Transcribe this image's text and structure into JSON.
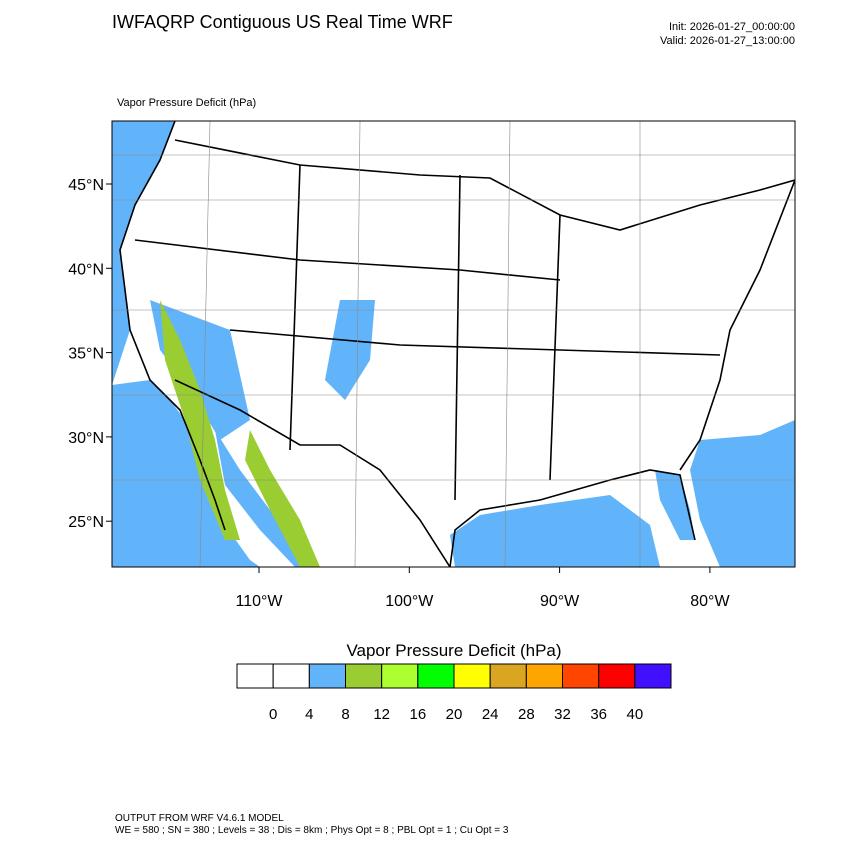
{
  "header": {
    "title": "IWFAQRP Contiguous US Real Time WRF",
    "init": "Init: 2026-01-27_00:00:00",
    "valid": "Valid: 2026-01-27_13:00:00"
  },
  "map": {
    "field_label": "Vapor Pressure Deficit   (hPa)",
    "lat_labels": [
      "45°N",
      "40°N",
      "35°N",
      "30°N",
      "25°N"
    ],
    "lon_labels": [
      "110°W",
      "100°W",
      "90°W",
      "80°W"
    ]
  },
  "colorbar": {
    "title": "Vapor Pressure Deficit  (hPa)",
    "colors": [
      "#ffffff",
      "#ffffff",
      "#62b4fa",
      "#9acd32",
      "#adff2f",
      "#00ff00",
      "#ffff00",
      "#daa520",
      "#ffa500",
      "#ff4500",
      "#ff0000",
      "#4010ff"
    ],
    "labels": [
      "0",
      "4",
      "8",
      "12",
      "16",
      "20",
      "24",
      "28",
      "32",
      "36",
      "40"
    ]
  },
  "footer": {
    "line1": "OUTPUT FROM WRF V4.6.1 MODEL",
    "line2": "WE = 580 ; SN = 380 ; Levels = 38 ; Dis = 8km ; Phys Opt = 8 ; PBL Opt = 1 ; Cu Opt = 3"
  }
}
